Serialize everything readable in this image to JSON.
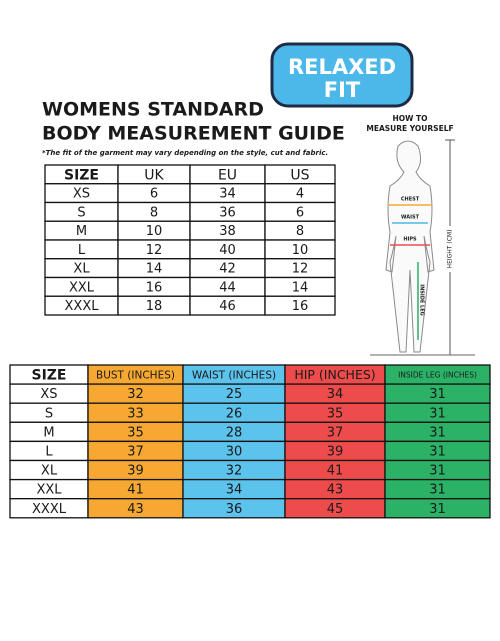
{
  "badge": {
    "line1": "RELAXED",
    "line2": "FIT"
  },
  "title": {
    "line1": "WOMENS STANDARD",
    "line2": "BODY MEASUREMENT GUIDE"
  },
  "note": "*The fit of the garment may vary depending on the style, cut and fabric.",
  "figure": {
    "title_line1": "HOW TO",
    "title_line2": "MEASURE YOURSELF",
    "chest": "CHEST",
    "waist": "WAIST",
    "hips": "HIPS",
    "inside_leg": "INSIDE LEG",
    "height": "HEIGHT (CM)"
  },
  "size_table": {
    "header": [
      "SIZE",
      "UK",
      "EU",
      "US"
    ],
    "rows": [
      [
        "XS",
        "6",
        "34",
        "4"
      ],
      [
        "S",
        "8",
        "36",
        "6"
      ],
      [
        "M",
        "10",
        "38",
        "8"
      ],
      [
        "L",
        "12",
        "40",
        "10"
      ],
      [
        "XL",
        "14",
        "42",
        "12"
      ],
      [
        "XXL",
        "16",
        "44",
        "14"
      ],
      [
        "XXXL",
        "18",
        "46",
        "16"
      ]
    ]
  },
  "measure_table": {
    "header": [
      "SIZE",
      "BUST (INCHES)",
      "WAIST (INCHES)",
      "HIP (INCHES)",
      "INSIDE LEG (INCHES)"
    ],
    "rows": [
      [
        "XS",
        "32",
        "25",
        "34",
        "31"
      ],
      [
        "S",
        "33",
        "26",
        "35",
        "31"
      ],
      [
        "M",
        "35",
        "28",
        "37",
        "31"
      ],
      [
        "L",
        "37",
        "30",
        "39",
        "31"
      ],
      [
        "XL",
        "39",
        "32",
        "41",
        "31"
      ],
      [
        "XXL",
        "41",
        "34",
        "43",
        "31"
      ],
      [
        "XXXL",
        "43",
        "36",
        "45",
        "31"
      ]
    ]
  }
}
